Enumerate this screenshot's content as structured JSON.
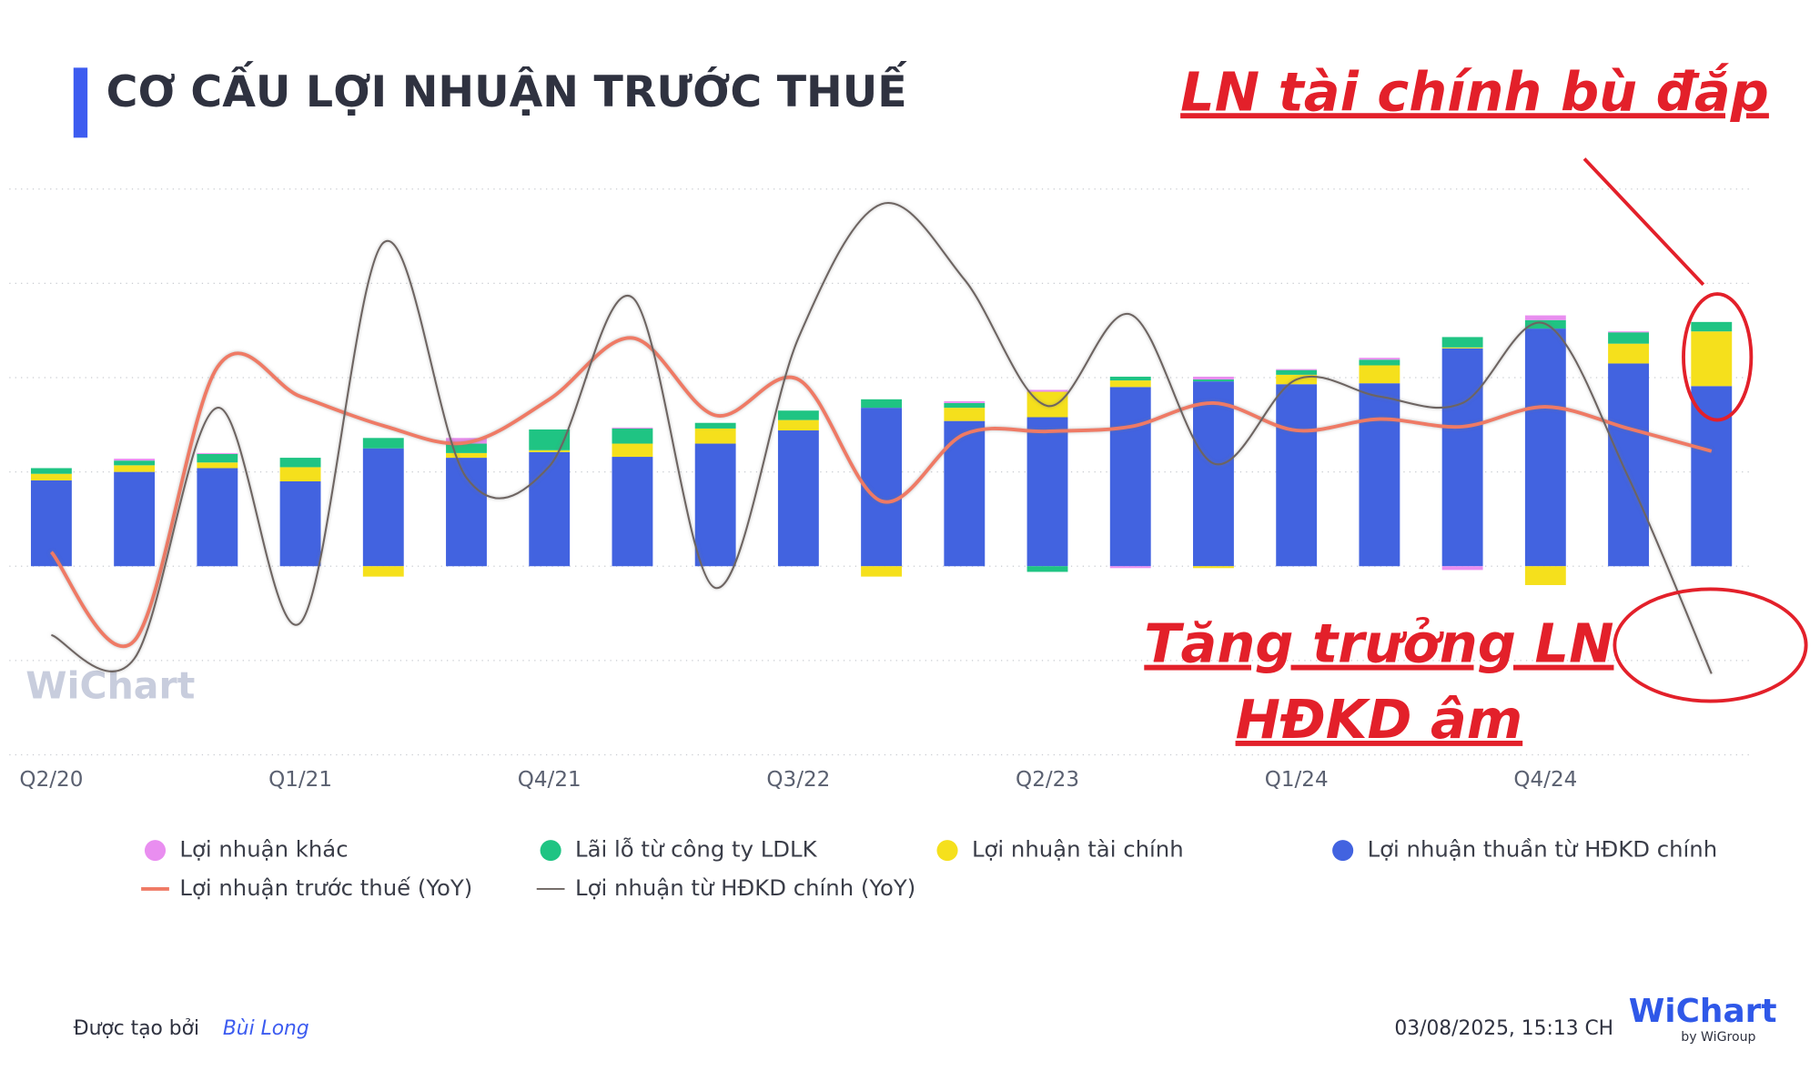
{
  "chart_data": {
    "type": "bar",
    "title": "CƠ CẤU LỢI NHUẬN TRƯỚC THUẾ",
    "categories": [
      "Q2/20",
      null,
      null,
      "Q1/21",
      null,
      null,
      "Q4/21",
      null,
      null,
      "Q3/22",
      null,
      null,
      "Q2/23",
      null,
      null,
      "Q1/24",
      null,
      null,
      "Q4/24",
      null,
      null
    ],
    "series": [
      {
        "name": "Lợi nhuận khác",
        "type": "bar",
        "color": "#e98ef0",
        "values": [
          0,
          0.02,
          0.01,
          0,
          0,
          0.06,
          0,
          0.01,
          0,
          0,
          0,
          0.02,
          0.02,
          -0.02,
          0.03,
          0.01,
          0.02,
          -0.04,
          0.05,
          0.01,
          0
        ]
      },
      {
        "name": "Lãi lỗ từ công ty LDLK",
        "type": "bar",
        "color": "#1fc483",
        "values": [
          0.06,
          0.05,
          0.09,
          0.1,
          0.11,
          0.1,
          0.22,
          0.16,
          0.06,
          0.1,
          0.09,
          0.05,
          -0.06,
          0.04,
          0.02,
          0.05,
          0.06,
          0.11,
          0.09,
          0.12,
          0.1
        ]
      },
      {
        "name": "Lợi nhuận tài chính",
        "type": "bar",
        "color": "#f5e01c",
        "values": [
          0.07,
          0.07,
          0.06,
          0.15,
          -0.11,
          0.05,
          0.02,
          0.14,
          0.16,
          0.11,
          -0.11,
          0.14,
          0.27,
          0.07,
          -0.02,
          0.1,
          0.19,
          0.01,
          -0.2,
          0.21,
          0.58
        ]
      },
      {
        "name": "Lợi nhuận thuần từ HĐKD chính",
        "type": "bar",
        "color": "#4263e0",
        "values": [
          0.91,
          1.0,
          1.04,
          0.9,
          1.25,
          1.15,
          1.21,
          1.16,
          1.3,
          1.44,
          1.68,
          1.54,
          1.58,
          1.9,
          1.96,
          1.93,
          1.94,
          2.31,
          2.52,
          2.15,
          1.91
        ]
      },
      {
        "name": "Lợi nhuận trước thuế (YoY)",
        "type": "line",
        "color": "#ef7a65",
        "values": [
          0.15,
          -0.79,
          2.11,
          1.8,
          1.49,
          1.31,
          1.77,
          2.42,
          1.6,
          1.98,
          0.69,
          1.4,
          1.43,
          1.48,
          1.73,
          1.44,
          1.56,
          1.48,
          1.69,
          1.46,
          1.22
        ]
      },
      {
        "name": "Lợi nhuận từ HĐKD chính (YoY)",
        "type": "line",
        "color": "#6d6461",
        "values": [
          -0.73,
          -0.98,
          1.68,
          -0.6,
          3.43,
          0.94,
          1.06,
          2.85,
          -0.23,
          2.42,
          3.84,
          3.04,
          1.7,
          2.67,
          1.09,
          1.98,
          1.8,
          1.73,
          2.57,
          0.94,
          -1.14
        ]
      }
    ],
    "ylim": [
      -2,
      4
    ],
    "yticks": [
      -2,
      -1,
      0,
      1,
      2,
      3,
      4
    ],
    "grid": true,
    "annotations": [
      "LN tài chính bù đắp",
      "Tăng trưởng LN",
      "HĐKD âm"
    ],
    "watermark": "WiChart"
  },
  "footer": {
    "created_by": "Được tạo bởi",
    "author": "Bùi Long",
    "timestamp": "03/08/2025, 15:13 CH",
    "logo": "WiChart",
    "logo_sub": "by WiGroup"
  }
}
